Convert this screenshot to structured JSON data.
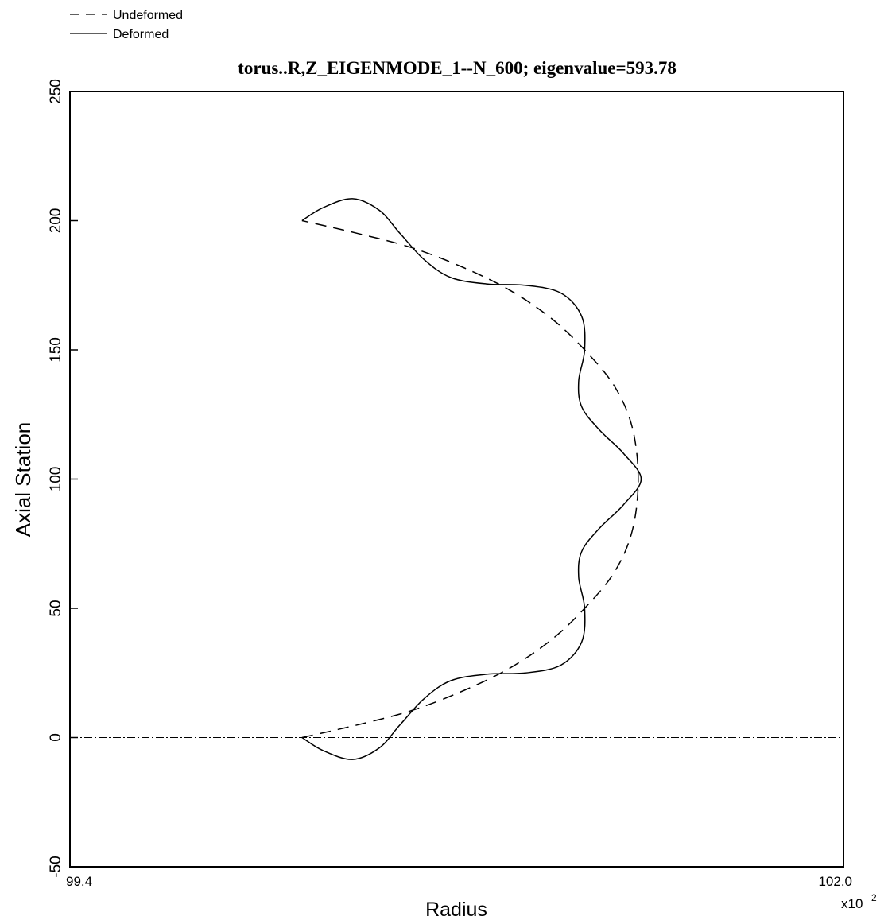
{
  "chart_data": {
    "type": "line",
    "title": "torus..R,Z_EIGENMODE_1--N_600; eigenvalue=593.78",
    "xlabel": "Radius",
    "ylabel": "Axial Station",
    "x_multiplier": "x10",
    "x_multiplier_exp": "2",
    "xlim": [
      99.4,
      102.0
    ],
    "ylim": [
      -50,
      250
    ],
    "x_tick_labels": [
      "99.4",
      "102.0"
    ],
    "y_ticks": [
      -50,
      0,
      50,
      100,
      150,
      200,
      250
    ],
    "y_tick_labels": [
      "-50",
      "0",
      "50",
      "100",
      "150",
      "200",
      "250"
    ],
    "grid": false,
    "legend_position": "top-left",
    "series": [
      {
        "name": "Undeformed",
        "style": "dashed",
        "color": "#000000",
        "points": [
          [
            100.18,
            0
          ],
          [
            100.37,
            5
          ],
          [
            100.55,
            10.5
          ],
          [
            100.72,
            18
          ],
          [
            100.88,
            27
          ],
          [
            101.02,
            38
          ],
          [
            101.13,
            50
          ],
          [
            101.23,
            64
          ],
          [
            101.29,
            80
          ],
          [
            101.31,
            100
          ],
          [
            101.29,
            120
          ],
          [
            101.23,
            136
          ],
          [
            101.13,
            150
          ],
          [
            101.02,
            162
          ],
          [
            100.88,
            173
          ],
          [
            100.72,
            182
          ],
          [
            100.55,
            189.5
          ],
          [
            100.37,
            195
          ],
          [
            100.18,
            200
          ]
        ]
      },
      {
        "name": "Deformed",
        "style": "solid",
        "color": "#000000",
        "points": [
          [
            100.18,
            0
          ],
          [
            100.25,
            -5
          ],
          [
            100.35,
            -8.5
          ],
          [
            100.44,
            -4
          ],
          [
            100.51,
            5
          ],
          [
            100.59,
            15
          ],
          [
            100.68,
            22
          ],
          [
            100.8,
            24.5
          ],
          [
            100.93,
            25
          ],
          [
            101.05,
            28
          ],
          [
            101.12,
            37
          ],
          [
            101.13,
            50
          ],
          [
            101.11,
            62
          ],
          [
            101.12,
            72
          ],
          [
            101.18,
            81
          ],
          [
            101.26,
            90
          ],
          [
            101.32,
            100
          ],
          [
            101.26,
            110
          ],
          [
            101.18,
            119
          ],
          [
            101.12,
            128
          ],
          [
            101.11,
            138
          ],
          [
            101.13,
            150
          ],
          [
            101.12,
            163
          ],
          [
            101.05,
            172
          ],
          [
            100.93,
            175
          ],
          [
            100.8,
            175.5
          ],
          [
            100.68,
            178
          ],
          [
            100.59,
            185
          ],
          [
            100.51,
            195
          ],
          [
            100.44,
            204
          ],
          [
            100.35,
            208.5
          ],
          [
            100.25,
            205
          ],
          [
            100.18,
            200
          ]
        ]
      },
      {
        "name": "",
        "style": "dash-dot",
        "color": "#000000",
        "points": [
          [
            99.4,
            0
          ],
          [
            102.0,
            0
          ]
        ]
      }
    ]
  }
}
